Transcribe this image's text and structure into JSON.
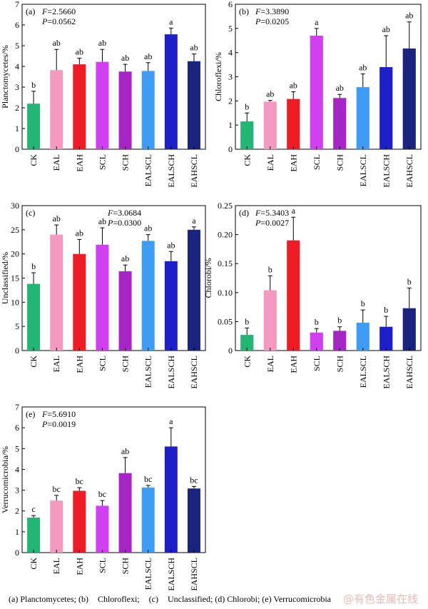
{
  "categories": [
    "CK",
    "EAL",
    "EAH",
    "SCL",
    "SCH",
    "EALSCL",
    "EALSCH",
    "EAHSCL"
  ],
  "colors": [
    "#22b573",
    "#f49ac1",
    "#ee1c25",
    "#d040f0",
    "#a526c4",
    "#3f9cf5",
    "#1f1fc8",
    "#1a237e"
  ],
  "chart_data": [
    {
      "type": "bar",
      "panel": "(a)",
      "ylabel": "Planctomycetes/%",
      "ylim": [
        0,
        7
      ],
      "yticks": [
        0,
        1,
        2,
        3,
        4,
        5,
        6,
        7
      ],
      "stats": {
        "F_label": "F",
        "F_value": "=2.5660",
        "P_label": "P",
        "P_value": "=0.0562"
      },
      "values": [
        2.2,
        3.82,
        4.1,
        4.22,
        3.75,
        3.78,
        5.55,
        4.25
      ],
      "errors": [
        0.6,
        1.0,
        0.3,
        0.6,
        0.35,
        0.4,
        0.3,
        0.35
      ],
      "letters": [
        "b",
        "ab",
        "ab",
        "ab",
        "ab",
        "ab",
        "a",
        "ab"
      ]
    },
    {
      "type": "bar",
      "panel": "(b)",
      "ylabel": "Chloroflexi/%",
      "ylim": [
        0,
        6
      ],
      "yticks": [
        0,
        1,
        2,
        3,
        4,
        5,
        6
      ],
      "stats": {
        "F_label": "F",
        "F_value": "=3.3890",
        "P_label": "P",
        "P_value": "=0.0205"
      },
      "values": [
        1.15,
        1.97,
        2.08,
        4.7,
        2.12,
        2.57,
        3.4,
        4.17
      ],
      "errors": [
        0.35,
        0.05,
        0.3,
        0.3,
        0.15,
        0.55,
        1.3,
        1.1
      ],
      "letters": [
        "b",
        "ab",
        "ab",
        "a",
        "ab",
        "ab",
        "ab",
        "ab"
      ]
    },
    {
      "type": "bar",
      "panel": "(c)",
      "ylabel": "Unclassified/%",
      "ylim": [
        0,
        30
      ],
      "yticks": [
        0,
        5,
        10,
        15,
        20,
        25,
        30
      ],
      "stats": {
        "F_label": "F",
        "F_value": "=3.0684",
        "P_label": "P",
        "P_value": "=0.0300"
      },
      "values": [
        13.8,
        24.0,
        20.0,
        21.9,
        16.4,
        22.7,
        18.5,
        25.0
      ],
      "errors": [
        2.3,
        2.0,
        3.0,
        3.5,
        1.3,
        1.3,
        2.0,
        0.6
      ],
      "letters": [
        "b",
        "ab",
        "ab",
        "ab",
        "ab",
        "ab",
        "ab",
        "a"
      ]
    },
    {
      "type": "bar",
      "panel": "(d)",
      "ylabel": "Chlorobi/%",
      "ylim": [
        0,
        0.25
      ],
      "yticks": [
        0,
        0.05,
        0.1,
        0.15,
        0.2,
        0.25
      ],
      "ytick_labels": [
        "0",
        "0.05",
        "0.10",
        "0.15",
        "0.20",
        "0.25"
      ],
      "stats": {
        "F_label": "F",
        "F_value": "=5.3403",
        "P_label": "P",
        "P_value": "=0.0027"
      },
      "values": [
        0.027,
        0.104,
        0.19,
        0.031,
        0.034,
        0.048,
        0.041,
        0.073
      ],
      "errors": [
        0.012,
        0.025,
        0.04,
        0.007,
        0.007,
        0.022,
        0.018,
        0.035
      ],
      "letters": [
        "b",
        "b",
        "a",
        "b",
        "b",
        "b",
        "b",
        "b"
      ]
    },
    {
      "type": "bar",
      "panel": "(e)",
      "ylabel": "Verrucomicrobia/%",
      "ylim": [
        0,
        7
      ],
      "yticks": [
        0,
        1,
        2,
        3,
        4,
        5,
        6,
        7
      ],
      "stats": {
        "F_label": "F",
        "F_value": "=5.6910",
        "P_label": "P",
        "P_value": "=0.0019"
      },
      "values": [
        1.68,
        2.5,
        2.97,
        2.25,
        3.82,
        3.13,
        5.1,
        3.08
      ],
      "errors": [
        0.1,
        0.25,
        0.15,
        0.25,
        0.75,
        0.1,
        0.9,
        0.1
      ],
      "letters": [
        "c",
        "bc",
        "bc",
        "bc",
        "ab",
        "bc",
        "a",
        "bc"
      ]
    }
  ],
  "caption": {
    "a": "(a)    Planctomycetes; (b)",
    "b": "Chloroflexi;",
    "c": "(c)",
    "d": "Unclassified; (d) Chlorobi; (e) Verrucomicrobia"
  },
  "watermark": "@有色金属在线"
}
